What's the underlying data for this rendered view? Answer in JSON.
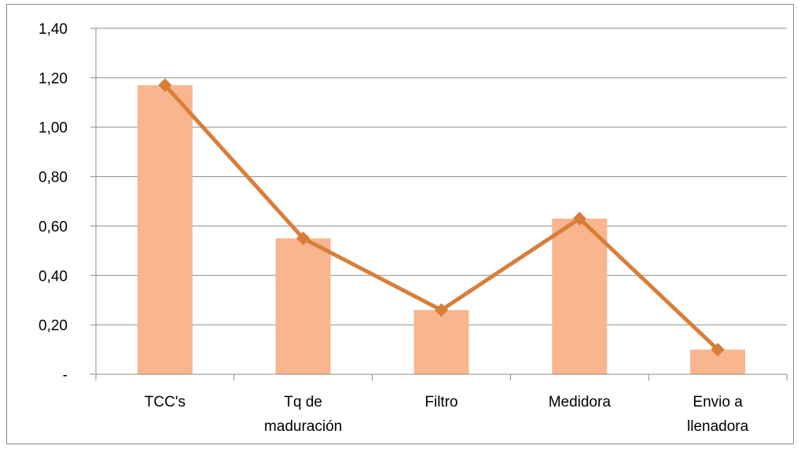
{
  "chart_data": {
    "type": "bar",
    "categories": [
      [
        "TCC's"
      ],
      [
        "Tq de",
        "maduración"
      ],
      [
        "Filtro"
      ],
      [
        "Medidora"
      ],
      [
        "Envio a",
        "llenadora"
      ]
    ],
    "series": [
      {
        "type": "bar",
        "values": [
          1.17,
          0.55,
          0.26,
          0.63,
          0.1
        ]
      },
      {
        "type": "line",
        "values": [
          1.17,
          0.55,
          0.26,
          0.63,
          0.1
        ]
      }
    ],
    "yticks": [
      {
        "value": 0,
        "label": "-"
      },
      {
        "value": 0.2,
        "label": "0,20"
      },
      {
        "value": 0.4,
        "label": "0,40"
      },
      {
        "value": 0.6,
        "label": "0,60"
      },
      {
        "value": 0.8,
        "label": "0,80"
      },
      {
        "value": 1.0,
        "label": "1,00"
      },
      {
        "value": 1.2,
        "label": "1,20"
      },
      {
        "value": 1.4,
        "label": "1,40"
      }
    ],
    "ylim": [
      0,
      1.4
    ],
    "grid": true,
    "title": "",
    "xlabel": "",
    "ylabel": "",
    "colors": {
      "bar": "#F8B58E",
      "line": "#D97E39",
      "grid": "#8C8C8C",
      "axis": "#8C8C8C"
    }
  }
}
